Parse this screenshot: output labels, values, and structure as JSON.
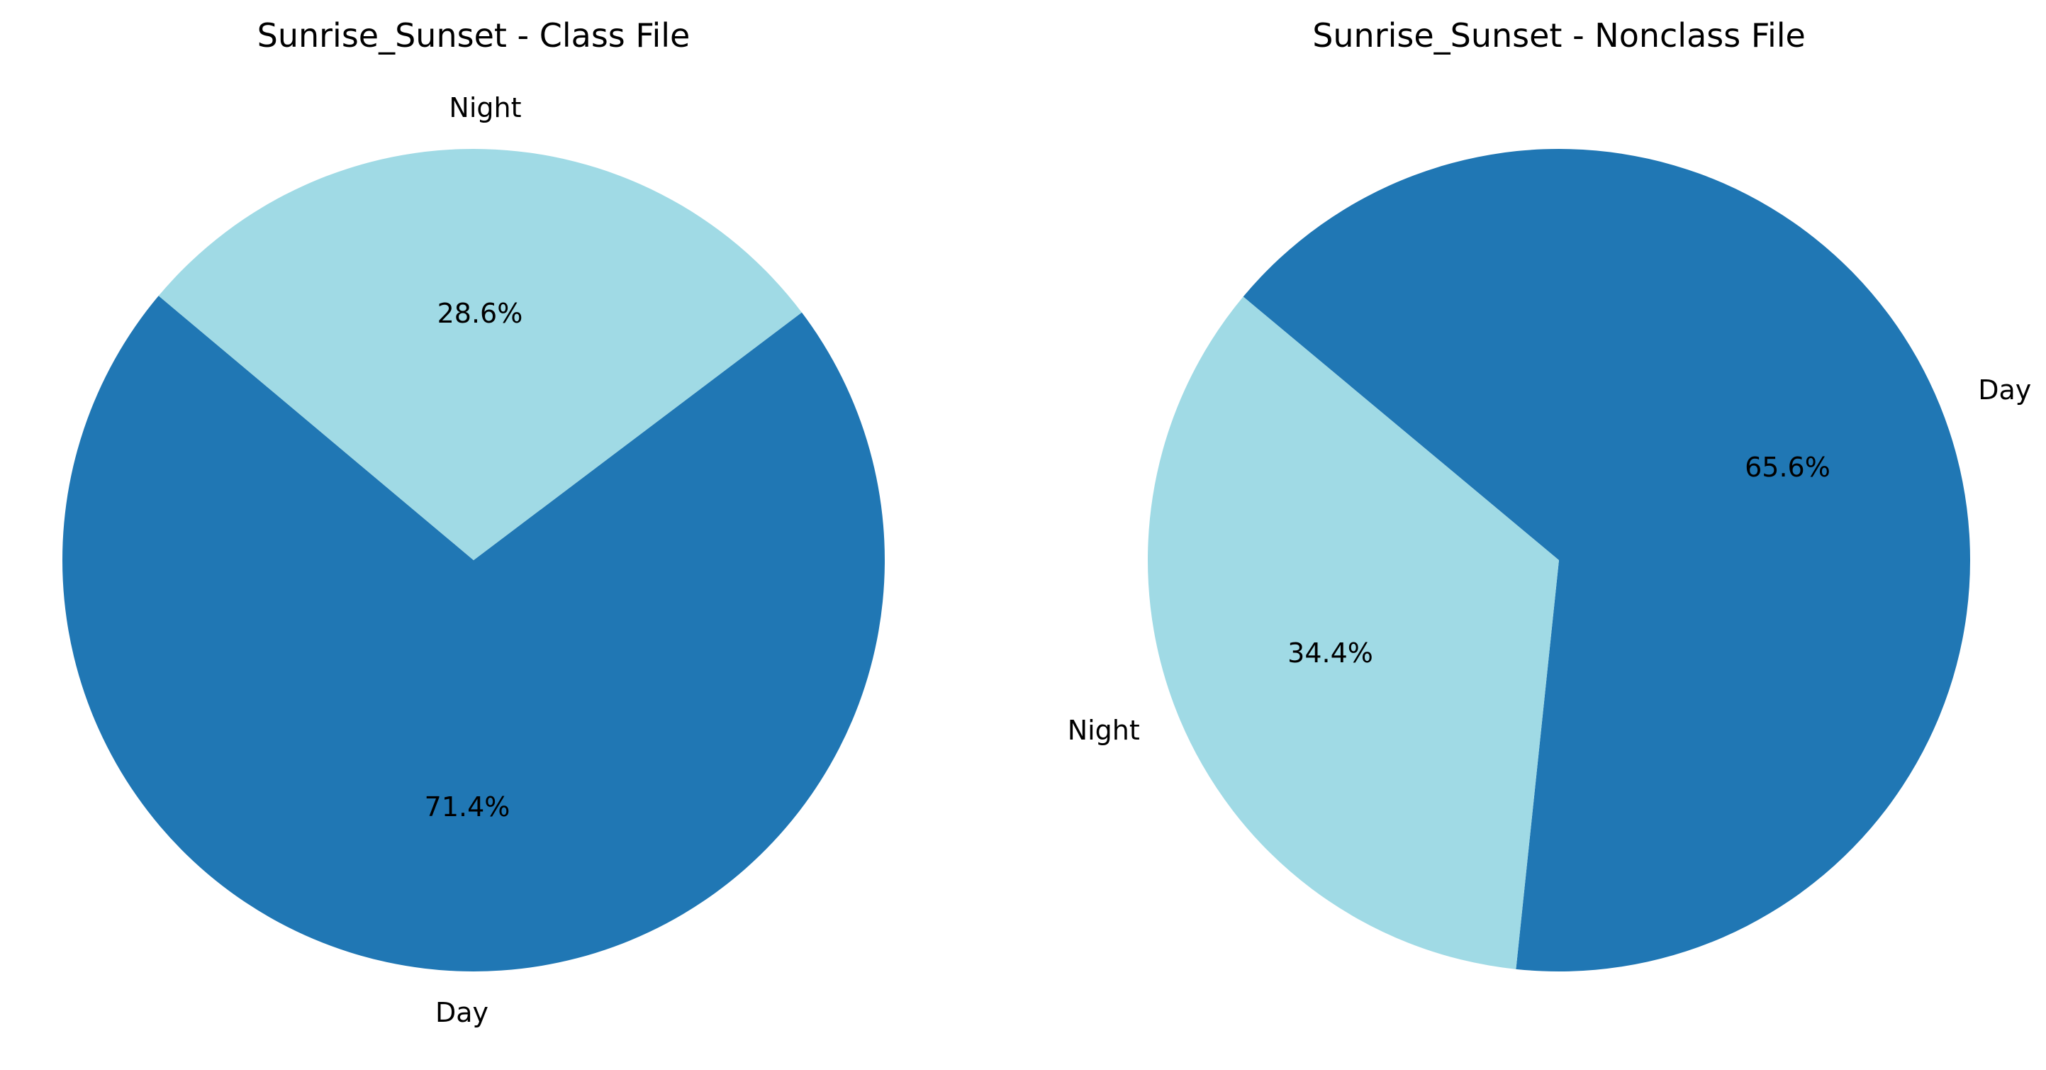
{
  "colors": {
    "day": "#2077b4",
    "night": "#a0dae5",
    "background": "#ffffff",
    "text": "#000000"
  },
  "chart_data": [
    {
      "type": "pie",
      "title": "Sunrise_Sunset - Class File",
      "slices": [
        {
          "label": "Day",
          "value": 71.4,
          "pct_label": "71.4%",
          "color": "#2077b4"
        },
        {
          "label": "Night",
          "value": 28.6,
          "pct_label": "28.6%",
          "color": "#a0dae5"
        }
      ],
      "start_angle_deg": 140,
      "direction": "counterclockwise"
    },
    {
      "type": "pie",
      "title": "Sunrise_Sunset - Nonclass File",
      "slices": [
        {
          "label": "Day",
          "value": 65.6,
          "pct_label": "65.6%",
          "color": "#2077b4"
        },
        {
          "label": "Night",
          "value": 34.4,
          "pct_label": "34.4%",
          "color": "#a0dae5"
        }
      ],
      "start_angle_deg": 264,
      "direction": "counterclockwise"
    }
  ]
}
